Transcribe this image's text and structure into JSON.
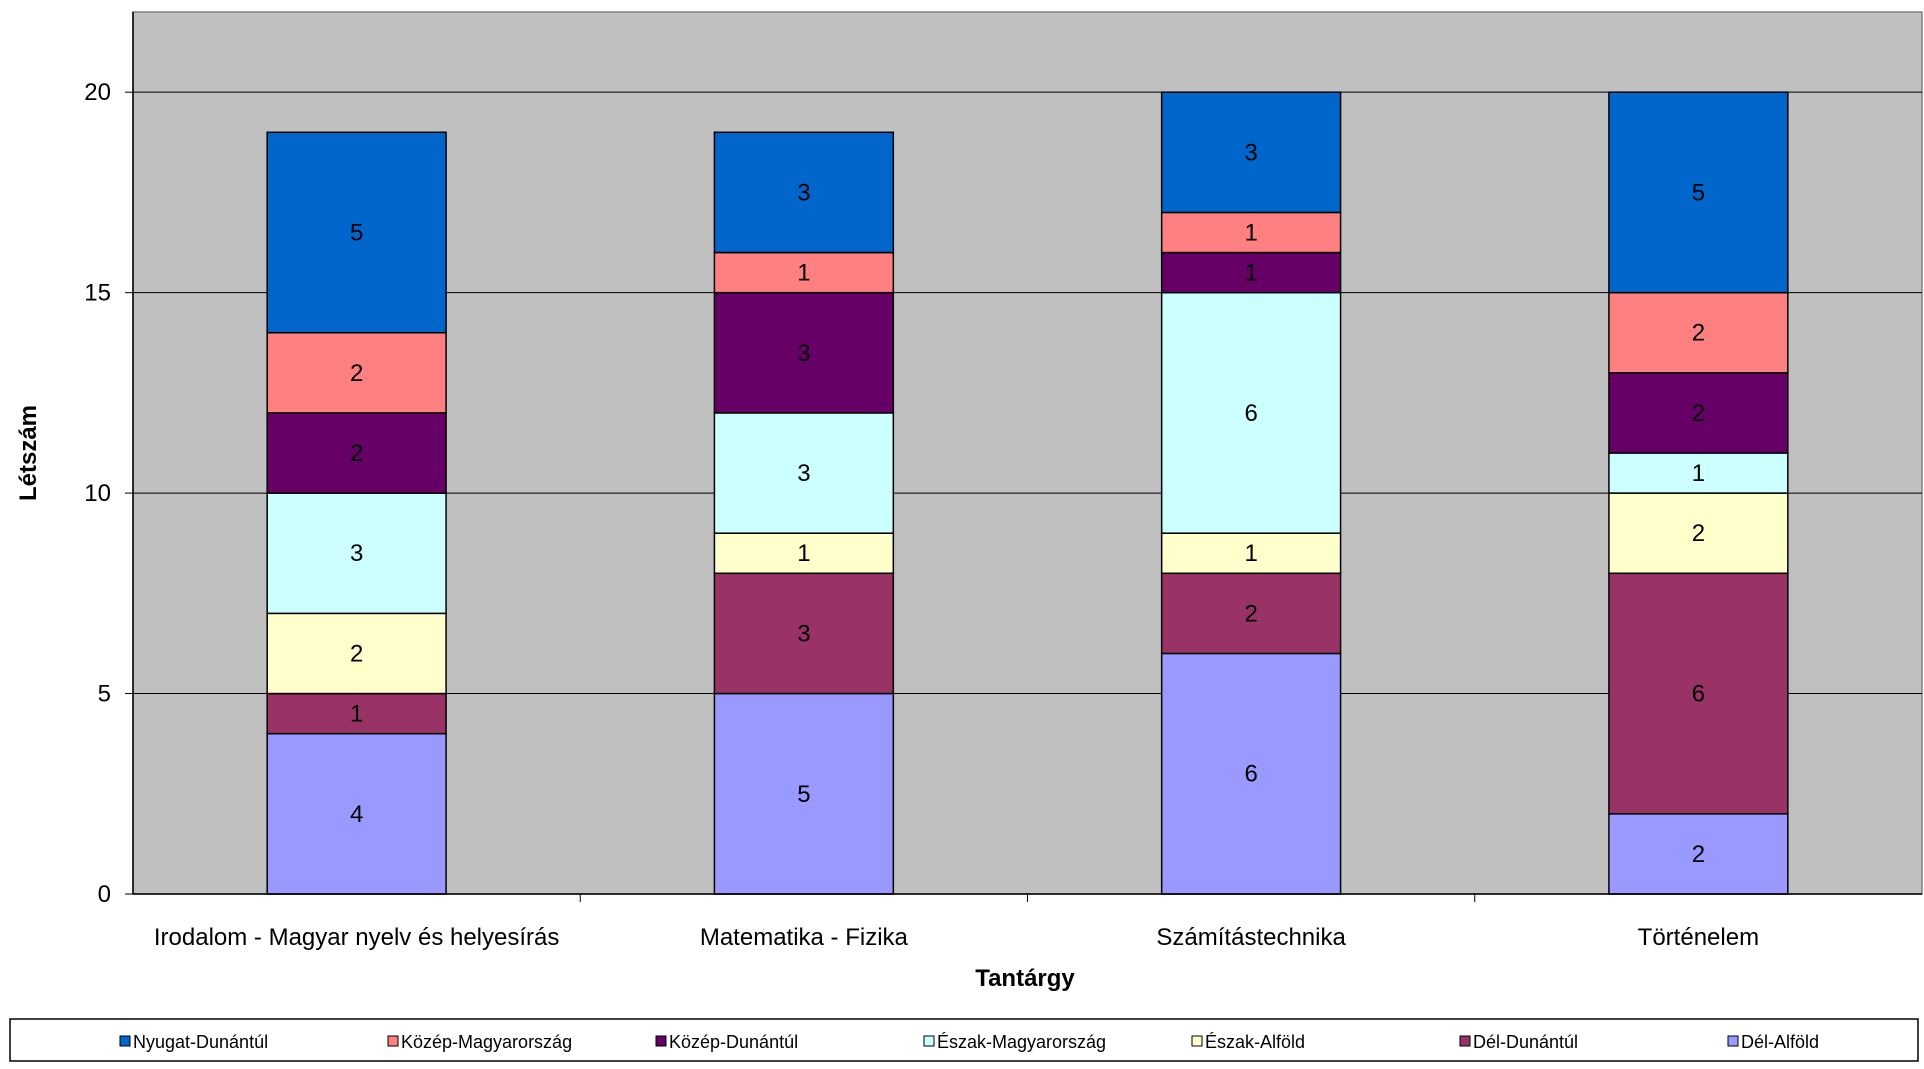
{
  "chart_data": {
    "type": "bar",
    "stacked": true,
    "title": "",
    "xlabel": "Tantárgy",
    "ylabel": "Létszám",
    "ylim": [
      0,
      22
    ],
    "yticks": [
      0,
      5,
      10,
      15,
      20
    ],
    "grid": true,
    "plot_background": "#c0c0c0",
    "legend_position": "bottom",
    "categories": [
      "Irodalom - Magyar nyelv és helyesírás",
      "Matematika - Fizika",
      "Számítástechnika",
      "Történelem"
    ],
    "series": [
      {
        "name": "Dél-Alföld",
        "color": "#9999ff",
        "values": [
          4,
          5,
          6,
          2
        ]
      },
      {
        "name": "Dél-Dunántúl",
        "color": "#993366",
        "values": [
          1,
          3,
          2,
          6
        ]
      },
      {
        "name": "Észak-Alföld",
        "color": "#ffffcc",
        "values": [
          2,
          1,
          1,
          2
        ]
      },
      {
        "name": "Észak-Magyarország",
        "color": "#ccffff",
        "values": [
          3,
          3,
          6,
          1
        ]
      },
      {
        "name": "Közép-Dunántúl",
        "color": "#660066",
        "values": [
          2,
          3,
          1,
          2
        ]
      },
      {
        "name": "Közép-Magyarország",
        "color": "#ff8080",
        "values": [
          2,
          1,
          1,
          2
        ]
      },
      {
        "name": "Nyugat-Dunántúl",
        "color": "#0066cc",
        "values": [
          5,
          3,
          3,
          5
        ]
      }
    ],
    "legend_order": [
      "Nyugat-Dunántúl",
      "Közép-Magyarország",
      "Közép-Dunántúl",
      "Észak-Magyarország",
      "Észak-Alföld",
      "Dél-Dunántúl",
      "Dél-Alföld"
    ]
  }
}
